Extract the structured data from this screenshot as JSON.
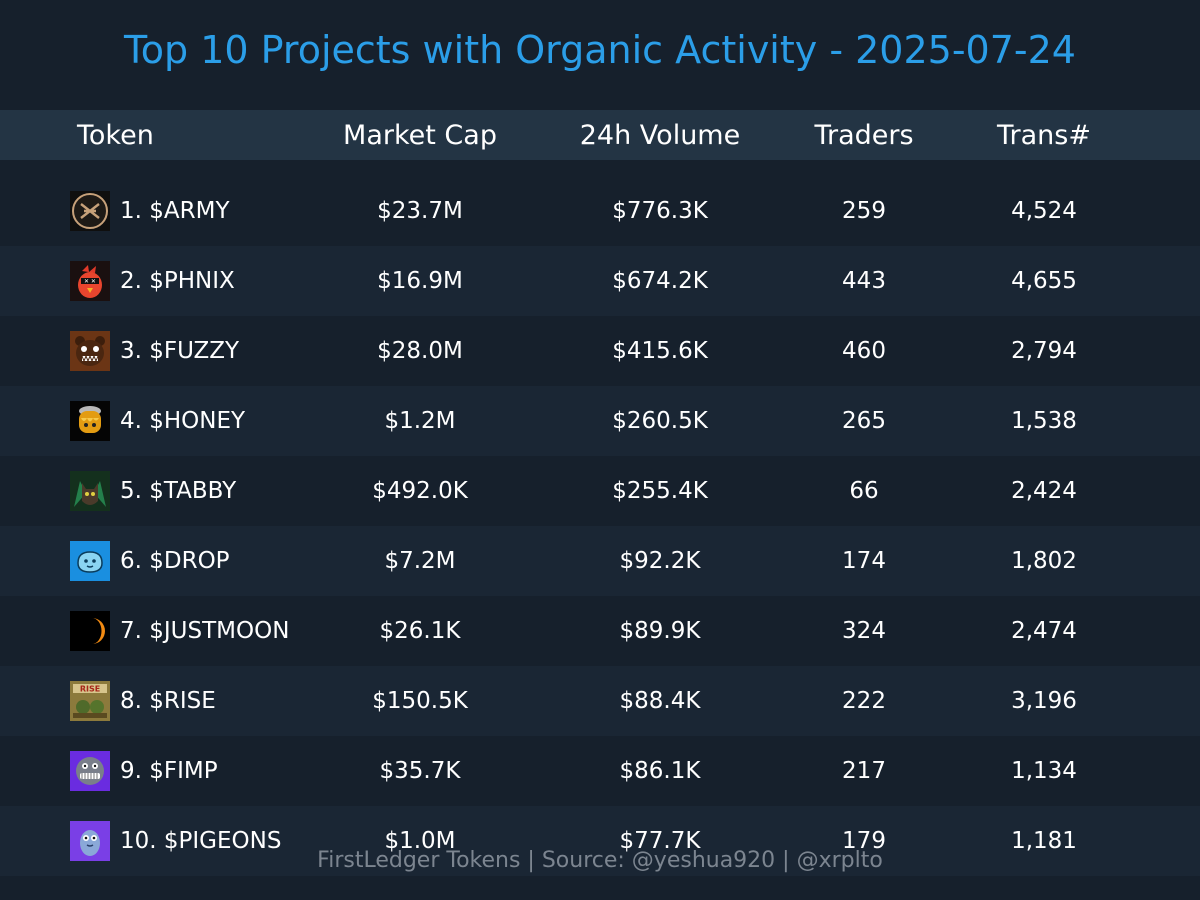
{
  "title": "Top 10 Projects with Organic Activity - 2025-07-24",
  "footer": "FirstLedger Tokens | Source: @yeshua920 | @xrplto",
  "columns": {
    "token": "Token",
    "market_cap": "Market Cap",
    "volume": "24h Volume",
    "traders": "Traders",
    "transactions": "Trans#"
  },
  "chart_data": {
    "type": "table",
    "title": "Top 10 Projects with Organic Activity - 2025-07-24",
    "columns": [
      "Token",
      "Market Cap",
      "24h Volume",
      "Traders",
      "Trans#"
    ],
    "rows": [
      {
        "token": "1. $ARMY",
        "market_cap": "$23.7M",
        "volume": "$776.3K",
        "traders": "259",
        "transactions": "4,524",
        "icon": "army-logo-icon"
      },
      {
        "token": "2. $PHNIX",
        "market_cap": "$16.9M",
        "volume": "$674.2K",
        "traders": "443",
        "transactions": "4,655",
        "icon": "phoenix-bird-icon"
      },
      {
        "token": "3. $FUZZY",
        "market_cap": "$28.0M",
        "volume": "$415.6K",
        "traders": "460",
        "transactions": "2,794",
        "icon": "fuzzy-bear-icon"
      },
      {
        "token": "4. $HONEY",
        "market_cap": "$1.2M",
        "volume": "$260.5K",
        "traders": "265",
        "transactions": "1,538",
        "icon": "honey-pot-icon"
      },
      {
        "token": "5. $TABBY",
        "market_cap": "$492.0K",
        "volume": "$255.4K",
        "traders": "66",
        "transactions": "2,424",
        "icon": "tabby-cat-icon"
      },
      {
        "token": "6. $DROP",
        "market_cap": "$7.2M",
        "volume": "$92.2K",
        "traders": "174",
        "transactions": "1,802",
        "icon": "drop-face-icon"
      },
      {
        "token": "7. $JUSTMOON",
        "market_cap": "$26.1K",
        "volume": "$89.9K",
        "traders": "324",
        "transactions": "2,474",
        "icon": "crescent-moon-icon"
      },
      {
        "token": "8. $RISE",
        "market_cap": "$150.5K",
        "volume": "$88.4K",
        "traders": "222",
        "transactions": "3,196",
        "icon": "rise-poster-icon"
      },
      {
        "token": "9. $FIMP",
        "market_cap": "$35.7K",
        "volume": "$86.1K",
        "traders": "217",
        "transactions": "1,134",
        "icon": "fimp-grin-icon"
      },
      {
        "token": "10. $PIGEONS",
        "market_cap": "$1.0M",
        "volume": "$77.7K",
        "traders": "179",
        "transactions": "1,181",
        "icon": "pigeon-icon"
      }
    ]
  },
  "colors": {
    "background": "#16202c",
    "header_background": "#233444",
    "row_alt_background": "#1a2634",
    "title": "#2b9ee8",
    "footer": "#7c8590"
  }
}
